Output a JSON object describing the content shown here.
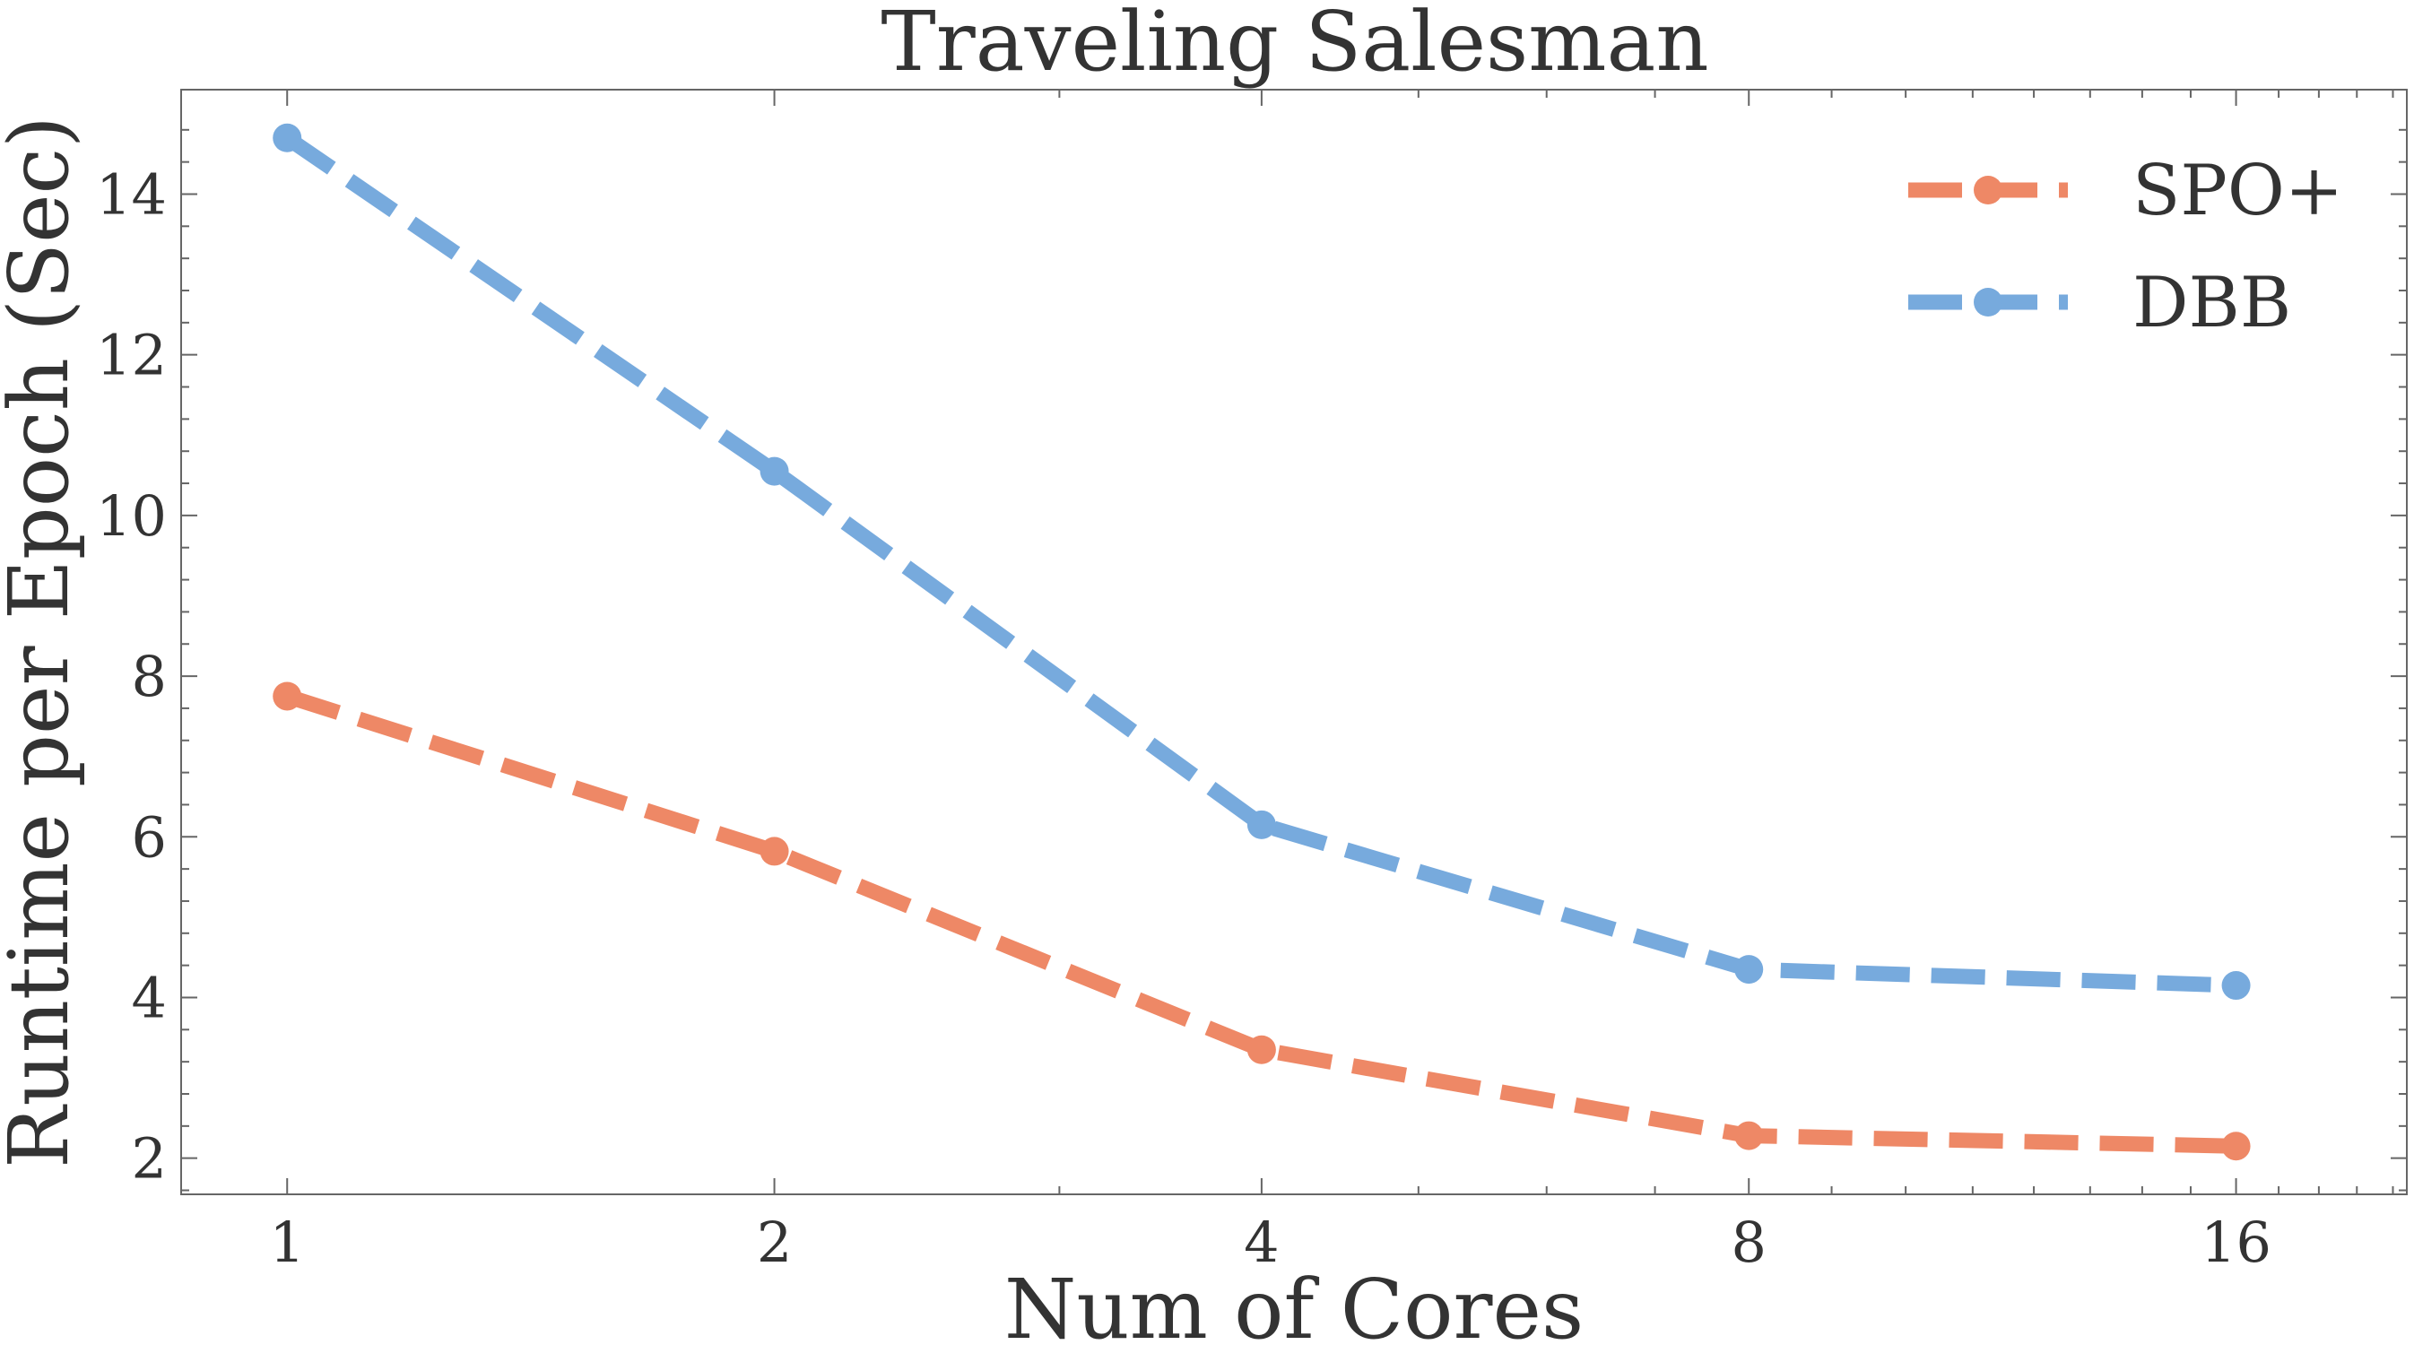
{
  "chart_data": {
    "type": "line",
    "title": "Traveling Salesman",
    "xlabel": "Num of Cores",
    "ylabel": "Runtime per Epoch (Sec)",
    "x": [
      1,
      2,
      4,
      8,
      16
    ],
    "x_ticks": [
      1,
      2,
      4,
      8,
      16
    ],
    "x_tick_labels": [
      "1",
      "2",
      "4",
      "8",
      "16"
    ],
    "y_ticks": [
      2,
      4,
      6,
      8,
      10,
      12,
      14
    ],
    "y_tick_labels": [
      "2",
      "4",
      "6",
      "8",
      "10",
      "12",
      "14"
    ],
    "xscale": "log2",
    "xlim": [
      0.86,
      20.4
    ],
    "ylim": [
      1.55,
      15.3
    ],
    "grid": false,
    "legend_position": "top-right",
    "line_style": "dashed",
    "marker": "circle",
    "series": [
      {
        "name": "SPO+",
        "color": "#EE8866",
        "values": [
          7.75,
          5.82,
          3.35,
          2.28,
          2.15
        ]
      },
      {
        "name": "DBB",
        "color": "#77AADD",
        "values": [
          14.7,
          10.55,
          6.15,
          4.35,
          4.15
        ]
      }
    ]
  }
}
